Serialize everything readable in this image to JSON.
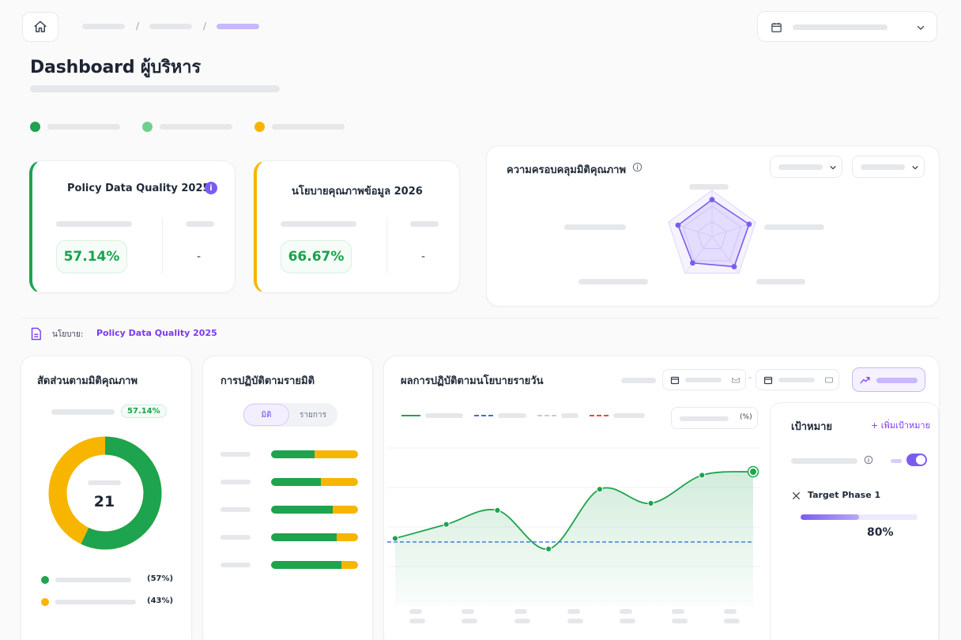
{
  "header": {
    "title": "Dashboard ผู้บริหาร",
    "breadcrumb_sep": "/"
  },
  "kpis": [
    {
      "title": "Policy Data Quality 2025",
      "value": "57.14%",
      "side": "-",
      "accent": "#1ea34e"
    },
    {
      "title": "นโยบายคุณภาพข้อมูล 2026",
      "value": "66.67%",
      "side": "-",
      "accent": "#f7b500"
    }
  ],
  "radar": {
    "title": "ความครอบคลุมมิติคุณภาพ",
    "values": [
      0.8,
      0.85,
      0.82,
      0.72,
      0.78
    ]
  },
  "policy_bar": {
    "label": "นโยบาย:",
    "value": "Policy Data Quality 2025"
  },
  "donut": {
    "title": "สัดส่วนตามมิติคุณภาพ",
    "badge": "57.14%",
    "center": "21",
    "green_fraction": 0.57,
    "legend": [
      {
        "pct": "(57%)",
        "color": "#1ea34e"
      },
      {
        "pct": "(43%)",
        "color": "#f7b500"
      }
    ]
  },
  "dimension_bars": {
    "title": "การปฏิบัติตามรายมิติ",
    "tabs": [
      "มิติ",
      "รายการ"
    ],
    "green_fractions": [
      0.5,
      0.57,
      0.71,
      0.75,
      0.81
    ]
  },
  "daily": {
    "title": "ผลการปฏิบัติตามนโยบายรายวัน",
    "unit_label": "(%)",
    "series": [
      62,
      66,
      70,
      59,
      76,
      72,
      80,
      81
    ],
    "target": 61
  },
  "goal": {
    "title": "เป้าหมาย",
    "add_label": "+ เพิ่มเป้าหมาย",
    "target_name": "Target Phase 1",
    "target_value": "80%",
    "target_fraction": 0.8
  },
  "colors": {
    "green": "#1ea34e",
    "yellow": "#f7b500",
    "purple": "#7c3aed",
    "blue": "#3b6fe0"
  }
}
